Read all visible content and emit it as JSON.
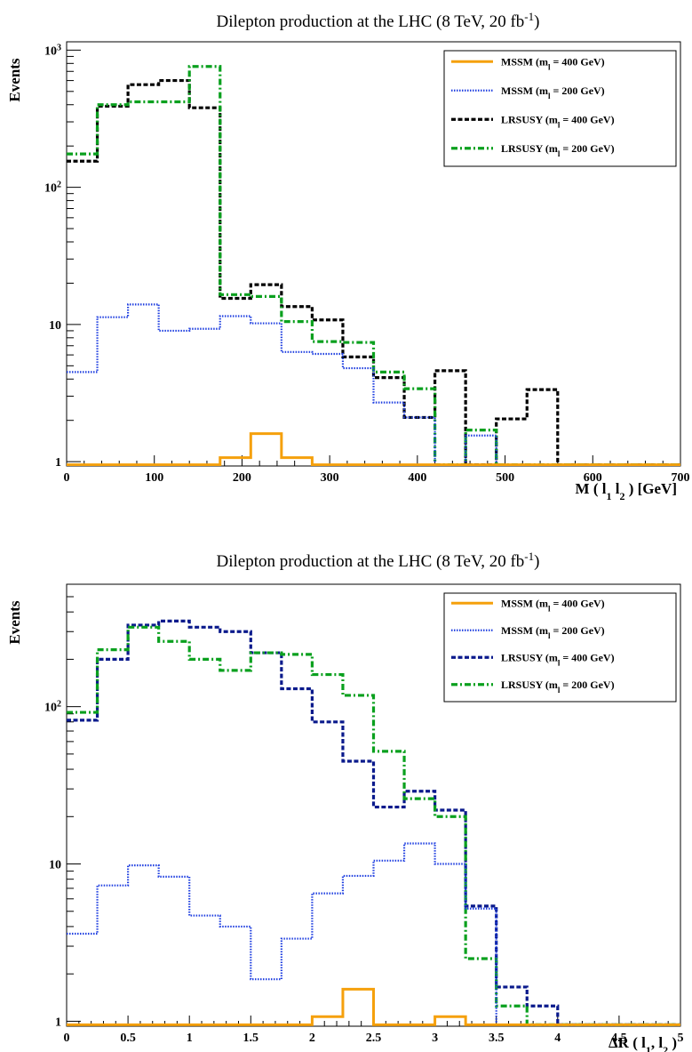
{
  "colors": {
    "MSSM_400": "#f5a00c",
    "MSSM_200": "#1f3fe0",
    "LRSUSY_400_top": "#000000",
    "LRSUSY_400_bottom": "#0a1a8c",
    "LRSUSY_200": "#0aa01e"
  },
  "chart_data": [
    {
      "type": "histogram",
      "title": "Dilepton production at the LHC (8 TeV, 20 fb",
      "title_sup": "-1",
      "title_end": ")",
      "ylabel": "Events",
      "xlabel_parts": [
        "M ( l",
        "1",
        " l",
        "2",
        " ) [GeV]"
      ],
      "yscale": "log",
      "ylim": [
        0.93,
        1150
      ],
      "xlim": [
        0,
        700
      ],
      "bin_edges": [
        0,
        35,
        70,
        105,
        140,
        175,
        210,
        245,
        280,
        315,
        350,
        385,
        420,
        455,
        490,
        525,
        560,
        595,
        630,
        665,
        700
      ],
      "x_ticks": [
        "0",
        "100",
        "200",
        "300",
        "400",
        "500",
        "600",
        "700"
      ],
      "x_tick_values": [
        0,
        100,
        200,
        300,
        400,
        500,
        600,
        700
      ],
      "y_ticks": [
        {
          "value": 1,
          "base": "1",
          "sup": ""
        },
        {
          "value": 10,
          "base": "10",
          "sup": ""
        },
        {
          "value": 100,
          "base": "10",
          "sup": "2"
        },
        {
          "value": 1000,
          "base": "10",
          "sup": "3"
        }
      ],
      "legend": [
        {
          "label": "MSSM (m",
          "sub": "l",
          "tail": " = 400 GeV)",
          "color_key": "MSSM_400",
          "dash": "solid"
        },
        {
          "label": "MSSM (m",
          "sub": "l",
          "tail": " = 200 GeV)",
          "color_key": "MSSM_200",
          "dash": "dotted"
        },
        {
          "label": "LRSUSY (m",
          "sub": "l",
          "tail": " = 400 GeV)",
          "color_key": "LRSUSY_400_top",
          "dash": "dashed"
        },
        {
          "label": "LRSUSY (m",
          "sub": "l",
          "tail": " = 200 GeV)",
          "color_key": "LRSUSY_200",
          "dash": "dashdot"
        }
      ],
      "series": [
        {
          "name": "MSSM (400 GeV)",
          "color_key": "MSSM_400",
          "dash": "solid",
          "values": [
            0.95,
            0.95,
            0.95,
            0.95,
            0.95,
            1.07,
            1.6,
            1.07,
            0.95,
            0.95,
            0.95,
            0.95,
            0.95,
            0.95,
            0.95,
            0.95,
            0.95,
            0.95,
            0.95,
            0.95
          ]
        },
        {
          "name": "MSSM (200 GeV)",
          "color_key": "MSSM_200",
          "dash": "dotted",
          "values": [
            4.5,
            11.3,
            14,
            9,
            9.3,
            11.5,
            10.2,
            6.3,
            6.1,
            4.8,
            2.7,
            2.1,
            0.95,
            1.55,
            0.95,
            0.95,
            0.95,
            0.95,
            0.95,
            0.95
          ]
        },
        {
          "name": "LRSUSY (400 GeV)",
          "color_key": "LRSUSY_400_top",
          "dash": "dashed",
          "values": [
            155,
            390,
            560,
            600,
            380,
            15.5,
            19.5,
            13.5,
            10.8,
            5.8,
            4.1,
            2.1,
            4.6,
            0.95,
            2.05,
            3.35,
            0.95,
            0.95,
            0.95,
            0.95
          ]
        },
        {
          "name": "LRSUSY (200 GeV)",
          "color_key": "LRSUSY_200",
          "dash": "dashdot",
          "values": [
            175,
            400,
            420,
            420,
            760,
            16.5,
            16,
            10.5,
            7.5,
            7.4,
            4.5,
            3.4,
            0.95,
            1.7,
            0.95,
            0.95,
            0.95,
            0.95,
            0.95,
            0.95
          ]
        }
      ]
    },
    {
      "type": "histogram",
      "title": "Dilepton production at the LHC (8 TeV, 20 fb",
      "title_sup": "-1",
      "title_end": ")",
      "ylabel": "Events",
      "xlabel_parts": [
        "ΔR ( l",
        "1",
        ", l",
        "2",
        " )"
      ],
      "yscale": "log",
      "ylim": [
        0.93,
        600
      ],
      "xlim": [
        0,
        5
      ],
      "bin_edges": [
        0,
        0.25,
        0.5,
        0.75,
        1,
        1.25,
        1.5,
        1.75,
        2,
        2.25,
        2.5,
        2.75,
        3,
        3.25,
        3.5,
        3.75,
        4,
        4.25,
        4.5,
        4.75,
        5
      ],
      "x_ticks": [
        "0",
        "0.5",
        "1",
        "1.5",
        "2",
        "2.5",
        "3",
        "3.5",
        "4",
        "4.5",
        "5"
      ],
      "x_tick_values": [
        0,
        0.5,
        1,
        1.5,
        2,
        2.5,
        3,
        3.5,
        4,
        4.5,
        5
      ],
      "y_ticks": [
        {
          "value": 1,
          "base": "1",
          "sup": ""
        },
        {
          "value": 10,
          "base": "10",
          "sup": ""
        },
        {
          "value": 100,
          "base": "10",
          "sup": "2"
        }
      ],
      "legend": [
        {
          "label": "MSSM (m",
          "sub": "l",
          "tail": " = 400 GeV)",
          "color_key": "MSSM_400",
          "dash": "solid"
        },
        {
          "label": "MSSM (m",
          "sub": "l",
          "tail": " = 200 GeV)",
          "color_key": "MSSM_200",
          "dash": "dotted"
        },
        {
          "label": "LRSUSY (m",
          "sub": "l",
          "tail": " = 400 GeV)",
          "color_key": "LRSUSY_400_bottom",
          "dash": "dashed"
        },
        {
          "label": "LRSUSY (m",
          "sub": "l",
          "tail": " = 200 GeV)",
          "color_key": "LRSUSY_200",
          "dash": "dashdot"
        }
      ],
      "series": [
        {
          "name": "MSSM (400 GeV)",
          "color_key": "MSSM_400",
          "dash": "solid",
          "values": [
            0.95,
            0.95,
            0.95,
            0.95,
            0.95,
            0.95,
            0.95,
            0.95,
            1.07,
            1.6,
            0.95,
            0.95,
            1.07,
            0.95,
            0.95,
            0.95,
            0.95,
            0.95,
            0.95,
            0.95
          ]
        },
        {
          "name": "MSSM (200 GeV)",
          "color_key": "MSSM_200",
          "dash": "dotted",
          "values": [
            3.6,
            7.3,
            9.8,
            8.3,
            4.7,
            4.0,
            1.85,
            3.35,
            6.5,
            8.4,
            10.5,
            13.5,
            10,
            5.2,
            0.95,
            0.95,
            0.95,
            0.95,
            0.95,
            0.95
          ]
        },
        {
          "name": "LRSUSY (400 GeV)",
          "color_key": "LRSUSY_400_bottom",
          "dash": "dashed",
          "values": [
            82,
            200,
            330,
            350,
            320,
            300,
            220,
            130,
            80,
            45,
            23,
            29,
            22,
            5.4,
            1.65,
            1.25,
            0.95,
            0.95,
            0.95,
            0.95
          ]
        },
        {
          "name": "LRSUSY (200 GeV)",
          "color_key": "LRSUSY_200",
          "dash": "dashdot",
          "values": [
            92,
            230,
            320,
            260,
            200,
            170,
            220,
            215,
            160,
            118,
            52,
            26,
            20,
            2.5,
            1.25,
            0.95,
            0.95,
            0.95,
            0.95,
            0.95
          ]
        }
      ]
    }
  ]
}
